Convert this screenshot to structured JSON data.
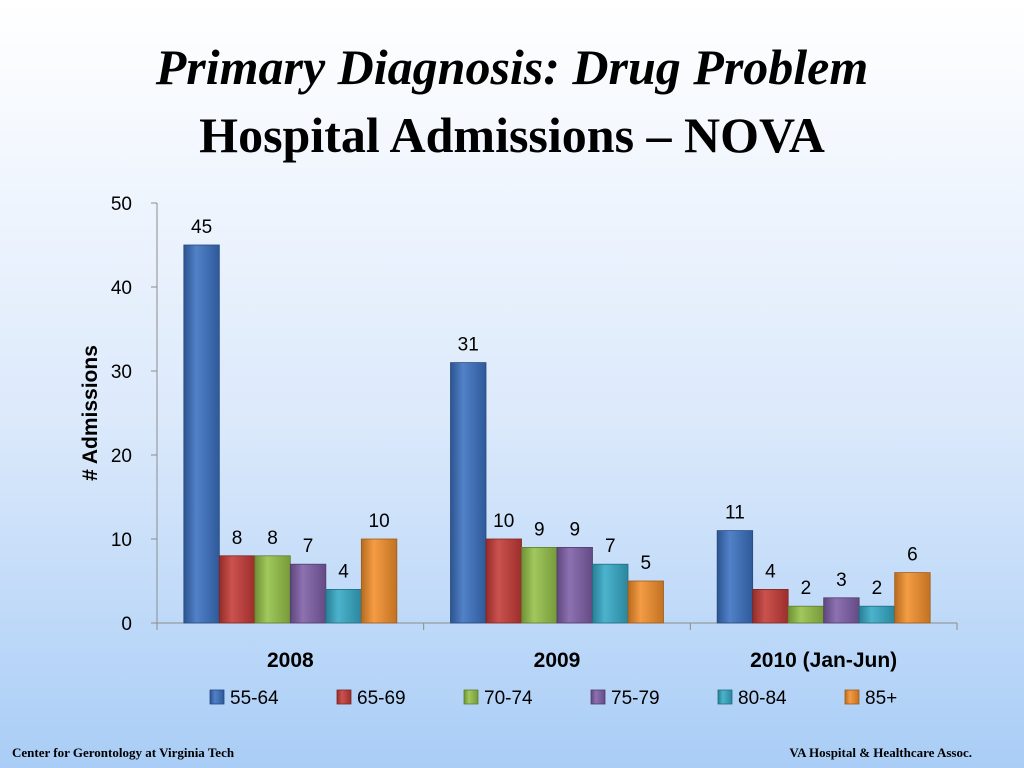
{
  "slide": {
    "title_line1": "Primary Diagnosis: Drug Problem",
    "title_line2": "Hospital Admissions – NOVA",
    "footer_left": "Center for Gerontology at Virginia Tech",
    "footer_right": "VA Hospital  & Healthcare Assoc."
  },
  "chart_data": {
    "type": "bar",
    "title": "",
    "xlabel": "",
    "ylabel": "# Admissions",
    "ylim": [
      0,
      50
    ],
    "yticks": [
      0,
      10,
      20,
      30,
      40,
      50
    ],
    "grid": false,
    "legend_position": "bottom",
    "data_labels": true,
    "categories": [
      "2008",
      "2009",
      "2010 (Jan-Jun)"
    ],
    "series": [
      {
        "name": "55-64",
        "color": "#3a70c0",
        "values": [
          45,
          31,
          11
        ]
      },
      {
        "name": "65-69",
        "color": "#c43a36",
        "values": [
          8,
          10,
          4
        ]
      },
      {
        "name": "70-74",
        "color": "#94c047",
        "values": [
          8,
          9,
          2
        ]
      },
      {
        "name": "75-79",
        "color": "#7d5ea6",
        "values": [
          7,
          9,
          3
        ]
      },
      {
        "name": "80-84",
        "color": "#34a9c6",
        "values": [
          4,
          7,
          2
        ]
      },
      {
        "name": "85+",
        "color": "#f28e2b",
        "values": [
          10,
          5,
          6
        ]
      }
    ]
  }
}
